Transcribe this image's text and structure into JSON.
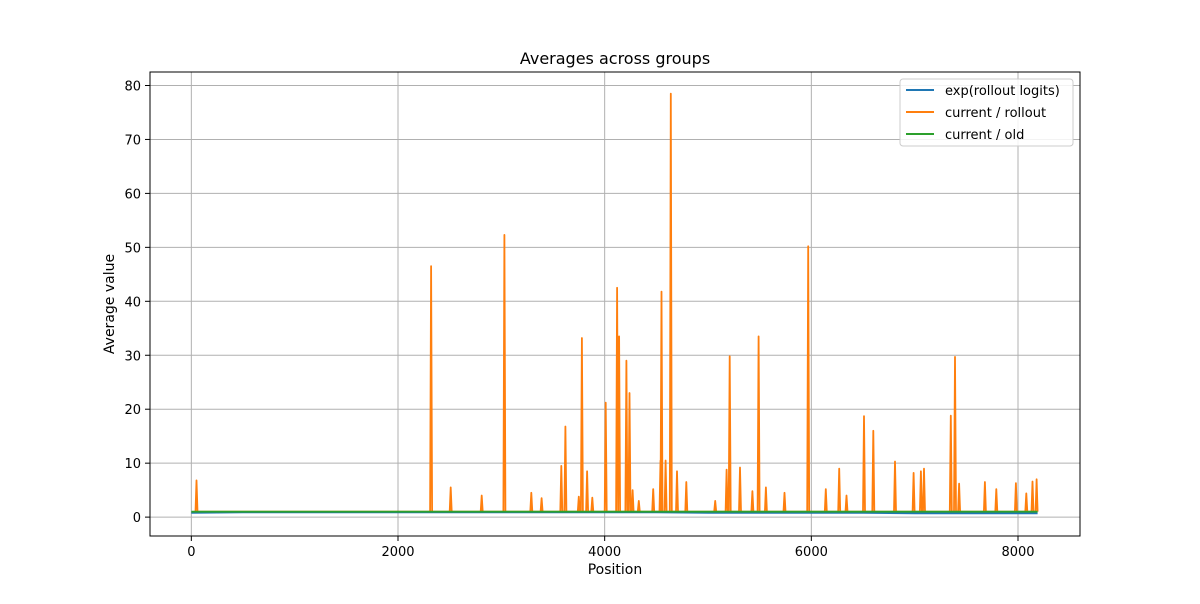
{
  "chart_data": {
    "type": "line",
    "title": "Averages across groups",
    "xlabel": "Position",
    "ylabel": "Average value",
    "xlim": [
      -400,
      8600
    ],
    "ylim": [
      -3.5,
      82.5
    ],
    "xticks": [
      0,
      2000,
      4000,
      6000,
      8000
    ],
    "yticks": [
      0,
      10,
      20,
      30,
      40,
      50,
      60,
      70,
      80
    ],
    "grid": true,
    "legend_position": "top-right",
    "series": [
      {
        "name": "exp(rollout logits)",
        "color": "#1f77b4",
        "baseline": 1.0,
        "x": [
          0,
          500,
          1000,
          1500,
          2000,
          2500,
          3000,
          3500,
          4000,
          4500,
          5000,
          5500,
          6000,
          6500,
          7000,
          7500,
          8000,
          8190
        ],
        "y": [
          0.8,
          0.9,
          0.9,
          0.9,
          0.9,
          0.9,
          0.9,
          0.9,
          0.9,
          0.9,
          0.8,
          0.8,
          0.8,
          0.8,
          0.7,
          0.7,
          0.7,
          0.7
        ]
      },
      {
        "name": "current / rollout",
        "color": "#ff7f0e",
        "baseline": 1.0,
        "x": [
          50,
          2320,
          2510,
          2810,
          3030,
          3290,
          3390,
          3580,
          3620,
          3750,
          3780,
          3830,
          3880,
          4010,
          4120,
          4140,
          4210,
          4240,
          4270,
          4330,
          4470,
          4540,
          4550,
          4590,
          4640,
          4700,
          4790,
          5070,
          5180,
          5210,
          5310,
          5430,
          5490,
          5560,
          5740,
          5970,
          6140,
          6270,
          6340,
          6510,
          6600,
          6810,
          6990,
          7060,
          7090,
          7350,
          7390,
          7430,
          7680,
          7790,
          7980,
          8080,
          8140,
          8180
        ],
        "y": [
          6.8,
          46.5,
          5.5,
          4.0,
          52.3,
          4.5,
          3.5,
          9.5,
          16.8,
          3.8,
          33.2,
          8.5,
          3.6,
          21.2,
          42.5,
          33.5,
          29.0,
          23.0,
          5.0,
          3.0,
          5.2,
          10.5,
          41.8,
          10.5,
          78.5,
          8.5,
          6.5,
          3.0,
          8.8,
          29.8,
          9.2,
          4.8,
          33.5,
          5.5,
          4.5,
          50.2,
          5.2,
          9.0,
          4.0,
          18.7,
          16.0,
          10.3,
          8.2,
          8.5,
          9.0,
          18.8,
          29.7,
          6.2,
          6.5,
          5.2,
          6.3,
          4.4,
          6.6,
          7.0
        ]
      },
      {
        "name": "current / old",
        "color": "#2ca02c",
        "baseline": 1.0,
        "x": [
          0,
          500,
          1000,
          1500,
          2000,
          2500,
          3000,
          3500,
          4000,
          4500,
          5000,
          5500,
          6000,
          6500,
          7000,
          7500,
          8000,
          8190
        ],
        "y": [
          1.0,
          1.0,
          1.0,
          1.0,
          1.0,
          1.0,
          1.0,
          1.0,
          1.0,
          1.0,
          1.0,
          1.0,
          1.0,
          1.0,
          1.0,
          1.0,
          1.0,
          1.0
        ]
      }
    ]
  }
}
